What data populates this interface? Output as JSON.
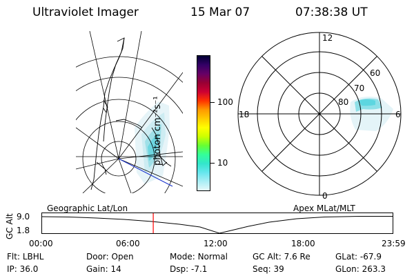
{
  "header": {
    "title": "Ultraviolet Imager",
    "date": "15 Mar 07",
    "time": "07:38:38 UT"
  },
  "colorbar": {
    "unit_label": "photon cm⁻²s⁻¹",
    "ticks": [
      "100",
      "10"
    ],
    "colors": [
      "#000033",
      "#330066",
      "#660066",
      "#990033",
      "#cc0033",
      "#ff3300",
      "#ff9900",
      "#ffcc00",
      "#ffff00",
      "#ccff00",
      "#66ff33",
      "#33ff99",
      "#33e6cc",
      "#66e6ee",
      "#aaeef5",
      "#e6f8fa"
    ]
  },
  "polar_plot": {
    "mlt_labels": [
      "12",
      "18",
      "6",
      "0"
    ],
    "lat_labels": [
      "60",
      "70",
      "80"
    ]
  },
  "panel_labels": {
    "left": "Geographic Lat/Lon",
    "right": "Apex MLat/MLT"
  },
  "timeline": {
    "axis_label": "GC Alt",
    "y_ticks": [
      "9.0",
      "1.8"
    ],
    "x_ticks": [
      "00:00",
      "06:00",
      "12:00",
      "18:00",
      "23:59"
    ],
    "marker_time": "07:38:38",
    "marker_color": "#ff0000"
  },
  "info": {
    "flt": {
      "label": "Flt:",
      "value": "LBHL"
    },
    "ip": {
      "label": "IP:",
      "value": "36.0"
    },
    "door": {
      "label": "Door:",
      "value": "Open"
    },
    "gain": {
      "label": "Gain:",
      "value": "14"
    },
    "mode": {
      "label": "Mode:",
      "value": "Normal"
    },
    "dsp": {
      "label": "Dsp:",
      "value": "-7.1"
    },
    "gcalt": {
      "label": "GC Alt:",
      "value": "7.6 Re"
    },
    "seq": {
      "label": "Seq:",
      "value": "39"
    },
    "glat": {
      "label": "GLat:",
      "value": "-67.9"
    },
    "glon": {
      "label": "GLon:",
      "value": "263.3"
    }
  }
}
